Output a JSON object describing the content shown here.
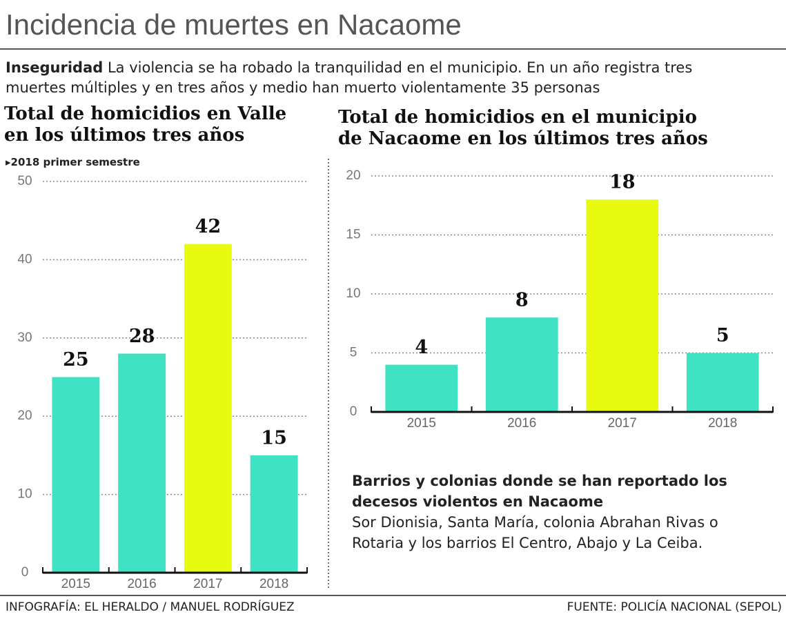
{
  "title": "Incidencia de muertes en Nacaome",
  "intro": {
    "lead": "Inseguridad",
    "text": "La violencia se ha robado la tranquilidad en el municipio. En un año registra tres muertes múltiples y en tres años y medio han muerto violentamente 35 personas"
  },
  "chart_data": [
    {
      "type": "bar",
      "title": "Total de homicidios en Valle en los últimos tres años",
      "subtitle": "2018 primer semestre",
      "categories": [
        "2015",
        "2016",
        "2017",
        "2018"
      ],
      "values": [
        25,
        28,
        42,
        15
      ],
      "colors": [
        "#3fe3c3",
        "#3fe3c3",
        "#e6fb10",
        "#3fe3c3"
      ],
      "ylim": [
        0,
        50
      ],
      "yticks": [
        0,
        10,
        20,
        30,
        40,
        50
      ],
      "grid": true
    },
    {
      "type": "bar",
      "title": "Total de homicidios en el municipio de Nacaome en los últimos tres años",
      "categories": [
        "2015",
        "2016",
        "2017",
        "2018"
      ],
      "values": [
        4,
        8,
        18,
        5
      ],
      "colors": [
        "#3fe3c3",
        "#3fe3c3",
        "#e6fb10",
        "#3fe3c3"
      ],
      "ylim": [
        0,
        20
      ],
      "yticks": [
        0,
        5,
        10,
        15,
        20
      ],
      "grid": true
    }
  ],
  "note": {
    "title": "Barrios y colonias donde se han reportado los decesos violentos en Nacaome",
    "text": "Sor Dionisia, Santa María, colonia Abrahan Rivas o Rotaria y los barrios El Centro, Abajo y La Ceiba."
  },
  "footer": {
    "credit": "INFOGRAFÍA: EL HERALDO / MANUEL RODRÍGUEZ",
    "source": "FUENTE: POLICÍA NACIONAL (SEPOL)"
  }
}
